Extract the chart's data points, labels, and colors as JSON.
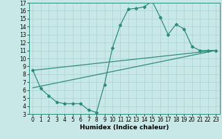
{
  "xlabel": "Humidex (Indice chaleur)",
  "bg_color": "#c8e8e8",
  "line_color": "#2e8b7a",
  "grid_color": "#aacfcf",
  "xlim": [
    -0.5,
    23.5
  ],
  "ylim": [
    3,
    17
  ],
  "xticks": [
    0,
    1,
    2,
    3,
    4,
    5,
    6,
    7,
    8,
    9,
    10,
    11,
    12,
    13,
    14,
    15,
    16,
    17,
    18,
    19,
    20,
    21,
    22,
    23
  ],
  "yticks": [
    3,
    4,
    5,
    6,
    7,
    8,
    9,
    10,
    11,
    12,
    13,
    14,
    15,
    16,
    17
  ],
  "line1_x": [
    0,
    1,
    2,
    3,
    4,
    5,
    6,
    7,
    8,
    9,
    10,
    11,
    12,
    13,
    14,
    15,
    16,
    17,
    18,
    19,
    20,
    21,
    22,
    23
  ],
  "line1_y": [
    8.5,
    6.2,
    5.3,
    4.5,
    4.3,
    4.3,
    4.3,
    3.5,
    3.2,
    6.7,
    11.3,
    14.2,
    16.2,
    16.3,
    16.5,
    17.2,
    15.2,
    13.0,
    14.3,
    13.7,
    11.5,
    11.0,
    11.0,
    11.0
  ],
  "line2_x": [
    0,
    23
  ],
  "line2_y": [
    6.3,
    11.0
  ],
  "line3_x": [
    0,
    23
  ],
  "line3_y": [
    8.5,
    11.0
  ],
  "tick_fontsize": 5.5,
  "xlabel_fontsize": 6.5
}
